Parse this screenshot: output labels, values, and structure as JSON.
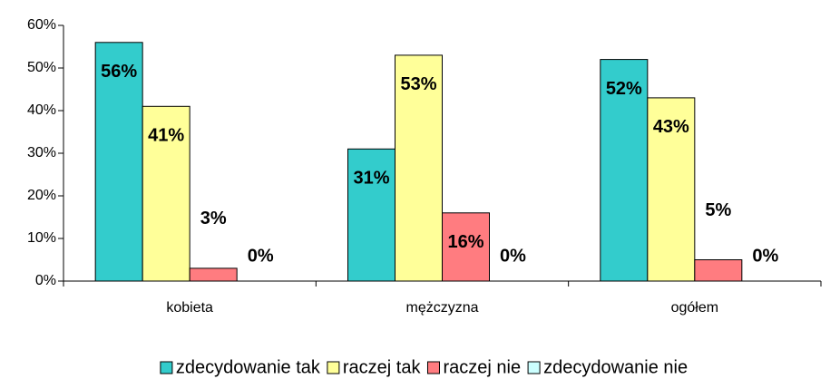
{
  "chart_data": {
    "type": "bar",
    "categories": [
      "kobieta",
      "mężczyzna",
      "ogółem"
    ],
    "series": [
      {
        "name": "zdecydowanie tak",
        "color": "#33cccc",
        "values": [
          56,
          31,
          52
        ],
        "value_labels": [
          "56%",
          "31%",
          "52%"
        ]
      },
      {
        "name": "raczej tak",
        "color": "#ffff99",
        "values": [
          41,
          53,
          43
        ],
        "value_labels": [
          "41%",
          "53%",
          "43%"
        ]
      },
      {
        "name": "raczej nie",
        "color": "#ff7c80",
        "values": [
          3,
          16,
          5
        ],
        "value_labels": [
          "3%",
          "16%",
          "5%"
        ]
      },
      {
        "name": "zdecydowanie nie",
        "color": "#ccffff",
        "values": [
          0,
          0,
          0
        ],
        "value_labels": [
          "0%",
          "0%",
          "0%"
        ]
      }
    ],
    "ylim": [
      0,
      60
    ],
    "yticks": [
      {
        "value": 0,
        "label": "0%"
      },
      {
        "value": 10,
        "label": "10%"
      },
      {
        "value": 20,
        "label": "20%"
      },
      {
        "value": 30,
        "label": "30%"
      },
      {
        "value": 40,
        "label": "40%"
      },
      {
        "value": 50,
        "label": "50%"
      },
      {
        "value": 60,
        "label": "60%"
      }
    ],
    "legend": "bottom"
  }
}
